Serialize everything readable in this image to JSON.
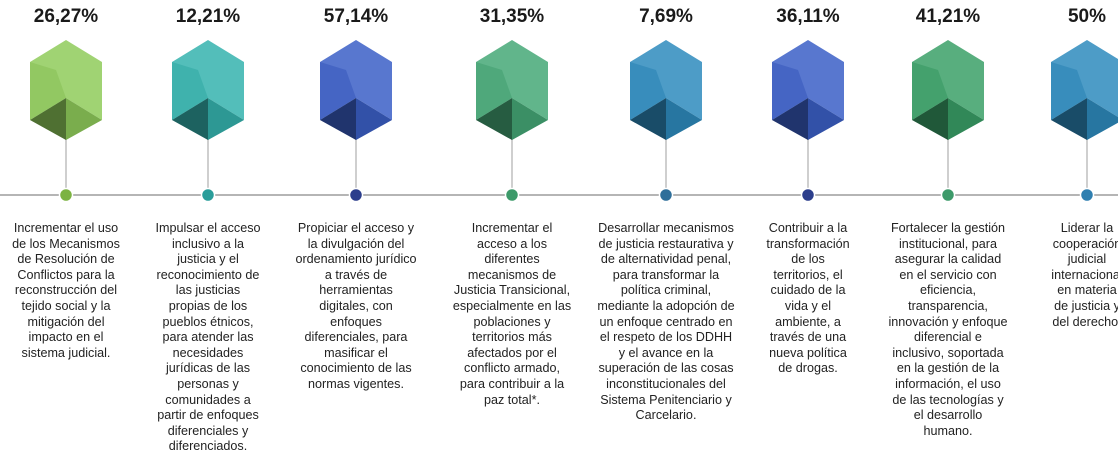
{
  "items": [
    {
      "value": "26,27%",
      "color": "#8fcb5a",
      "dot": "#7cb342",
      "description": [
        "Incrementar el uso",
        "de los Mecanismos",
        "de Resolución de",
        "Conflictos para la",
        "reconstrucción del",
        "tejido social y la",
        "mitigación del",
        "impacto en el",
        "sistema judicial."
      ]
    },
    {
      "value": "12,21%",
      "color": "#35b3ae",
      "dot": "#2a9d9a",
      "description": [
        "Impulsar el acceso",
        "inclusivo a la",
        "justicia y el",
        "reconocimiento de",
        "las justicias",
        "propias de los",
        "pueblos étnicos,",
        "para atender las",
        "necesidades",
        "jurídicas de las",
        "personas y",
        "comunidades a",
        "partir de enfoques",
        "diferenciales y",
        "diferenciados."
      ]
    },
    {
      "value": "57,14%",
      "color": "#3b5fc6",
      "dot": "#2c3e8c",
      "description": [
        "Propiciar el acceso y",
        "la divulgación del",
        "ordenamiento jurídico",
        "a través de",
        "herramientas",
        "digitales, con",
        "enfoques",
        "diferenciales, para",
        "masificar el",
        "conocimiento de las",
        "normas vigentes."
      ]
    },
    {
      "value": "31,35%",
      "color": "#45a877",
      "dot": "#3d9a6a",
      "description": [
        "Incrementar el",
        "acceso a los",
        "diferentes",
        "mecanismos de",
        "Justicia Transicional,",
        "especialmente en las",
        "poblaciones y",
        "territorios más",
        "afectados por el",
        "conflicto armado,",
        "para contribuir a la",
        "paz total*."
      ]
    },
    {
      "value": "7,69%",
      "color": "#2e8bbd",
      "dot": "#2f6f9a",
      "description": [
        "Desarrollar mecanismos",
        "de justicia restaurativa y",
        "de alternatividad penal,",
        "para transformar la",
        "política criminal,",
        "mediante la adopción de",
        "un enfoque centrado en",
        "el respeto de los DDHH",
        "y el avance en la",
        "superación de las cosas",
        "inconstitucionales del",
        "Sistema Penitenciario y",
        "Carcelario."
      ]
    },
    {
      "value": "36,11%",
      "color": "#3b5fc6",
      "dot": "#2c3e8c",
      "description": [
        "Contribuir a la",
        "transformación",
        "de los",
        "territorios, el",
        "cuidado de la",
        "vida y el",
        "ambiente, a",
        "través de una",
        "nueva política",
        "de drogas."
      ]
    },
    {
      "value": "41,21%",
      "color": "#3aa067",
      "dot": "#3d9a6a",
      "description": [
        "Fortalecer la gestión",
        "institucional, para",
        "asegurar la calidad",
        "en el servicio con",
        "eficiencia,",
        "transparencia,",
        "innovación y enfoque",
        "diferencial e",
        "inclusivo, soportada",
        "en la gestión de la",
        "información, el uso",
        "de las tecnologías y",
        "el desarrollo",
        "humano."
      ]
    },
    {
      "value": "50%",
      "color": "#2e8bbd",
      "dot": "#2f7fb0",
      "description": [
        "Liderar la",
        "cooperación",
        "judicial",
        "internacional",
        "en materia",
        "de justicia y",
        "del derecho."
      ]
    }
  ]
}
